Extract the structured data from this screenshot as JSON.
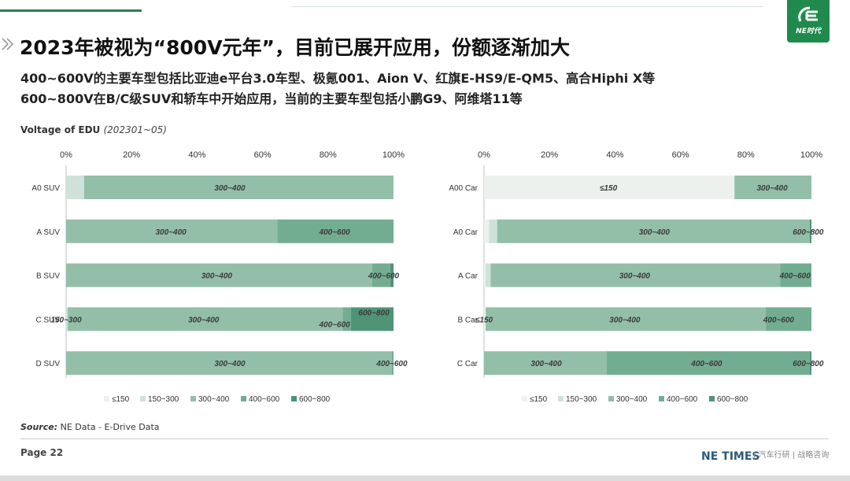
{
  "header": {
    "title": "2023年被视为“800V元年”，目前已展开应用，份额逐渐加大",
    "sub1": "400~600V的主要车型包括比亚迪e平台3.0车型、极氪001、Aion V、红旗E-HS9/E-QM5、高合Hiphi X等",
    "sub2": "600~800V在B/C级SUV和轿车中开始应用，当前的主要车型包括小鹏G9、阿维塔11等",
    "chart_title": "Voltage of EDU",
    "chart_period": "(202301~05)"
  },
  "logo": {
    "text": "NE时代"
  },
  "footer": {
    "source_label": "Source:",
    "source_text": " NE Data - E-Drive Data",
    "page": "Page 22",
    "brand": "NE TIMES",
    "tagline": "| 汽车行研 | 战略咨询"
  },
  "colors": {
    "≤150": "#ecf1ee",
    "150~300": "#cfe2d9",
    "300~400": "#93bfa8",
    "400~600": "#72ad92",
    "600~800": "#4e9475"
  },
  "chart_data": [
    {
      "type": "bar",
      "orientation": "horizontal",
      "stacked": true,
      "categories": [
        "A0 SUV",
        "A SUV",
        "B SUV",
        "C SUV",
        "D SUV"
      ],
      "series": [
        {
          "name": "≤150",
          "values": [
            0,
            0,
            0,
            0,
            0
          ]
        },
        {
          "name": "150~300",
          "values": [
            5.5,
            0,
            0,
            0.5,
            0
          ]
        },
        {
          "name": "300~400",
          "values": [
            94.5,
            64.5,
            93.5,
            84,
            99.5
          ]
        },
        {
          "name": "400~600",
          "values": [
            0,
            35.5,
            5.5,
            2.5,
            0.5
          ]
        },
        {
          "name": "600~800",
          "values": [
            0,
            0,
            1,
            13,
            0
          ]
        }
      ],
      "xticks": [
        "0%",
        "20%",
        "40%",
        "60%",
        "80%",
        "100%"
      ],
      "xlim": [
        0,
        100
      ],
      "legend": [
        "≤150",
        "150~300",
        "300~400",
        "400~600",
        "600~800"
      ],
      "legend_position": "bottom",
      "bar_labels": [
        [
          {
            "text": "300~400",
            "at": 50
          }
        ],
        [
          {
            "text": "300~400",
            "at": 32
          },
          {
            "text": "400~600",
            "at": 82
          }
        ],
        [
          {
            "text": "300~400",
            "at": 46
          },
          {
            "text": "400~600",
            "at": 97
          }
        ],
        [
          {
            "text": "150~300",
            "at": 0
          },
          {
            "text": "300~400",
            "at": 42
          },
          {
            "text": "400~600",
            "at": 82,
            "dy": 6
          },
          {
            "text": "600~800",
            "at": 94,
            "dy": -9
          }
        ],
        [
          {
            "text": "300~400",
            "at": 50
          },
          {
            "text": "400~600",
            "at": 99.5
          }
        ]
      ]
    },
    {
      "type": "bar",
      "orientation": "horizontal",
      "stacked": true,
      "categories": [
        "A00 Car",
        "A0 Car",
        "A Car",
        "B Car",
        "C Car"
      ],
      "series": [
        {
          "name": "≤150",
          "values": [
            76.5,
            1.5,
            0.5,
            0.5,
            0
          ]
        },
        {
          "name": "150~300",
          "values": [
            0,
            2.5,
            1.5,
            0,
            0
          ]
        },
        {
          "name": "300~400",
          "values": [
            23.5,
            95.5,
            88.5,
            85.5,
            37.5
          ]
        },
        {
          "name": "400~600",
          "values": [
            0,
            0,
            9.5,
            14,
            62
          ]
        },
        {
          "name": "600~800",
          "values": [
            0,
            0.5,
            0,
            0,
            0.5
          ]
        }
      ],
      "xticks": [
        "0%",
        "20%",
        "40%",
        "60%",
        "80%",
        "100%"
      ],
      "xlim": [
        0,
        100
      ],
      "legend": [
        "≤150",
        "150~300",
        "300~400",
        "400~600",
        "600~800"
      ],
      "legend_position": "bottom",
      "bar_labels": [
        [
          {
            "text": "≤150",
            "at": 38
          },
          {
            "text": "300~400",
            "at": 88
          }
        ],
        [
          {
            "text": "300~400",
            "at": 52
          },
          {
            "text": "600~800",
            "at": 99
          }
        ],
        [
          {
            "text": "300~400",
            "at": 46
          },
          {
            "text": "400~600",
            "at": 95
          }
        ],
        [
          {
            "text": "≤150",
            "at": 0
          },
          {
            "text": "300~400",
            "at": 43
          },
          {
            "text": "400~600",
            "at": 90
          }
        ],
        [
          {
            "text": "300~400",
            "at": 19
          },
          {
            "text": "400~600",
            "at": 68
          },
          {
            "text": "600~800",
            "at": 99
          }
        ]
      ]
    }
  ]
}
